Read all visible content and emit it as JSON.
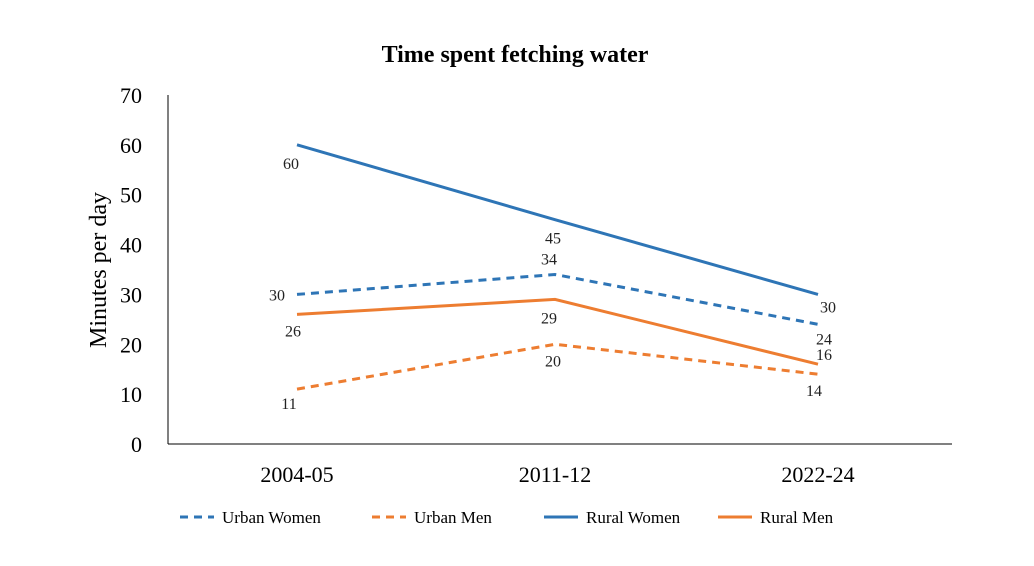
{
  "chart_data": {
    "type": "line",
    "title": "Time spent fetching water",
    "xlabel": "",
    "ylabel": "Minutes per day",
    "categories": [
      "2004-05",
      "2011-12",
      "2022-24"
    ],
    "ylim": [
      0,
      70
    ],
    "yticks": [
      0,
      10,
      20,
      30,
      40,
      50,
      60,
      70
    ],
    "grid": false,
    "legend_position": "bottom",
    "series": [
      {
        "name": "Urban Women",
        "values": [
          30,
          34,
          24
        ],
        "color": "#2E75B6",
        "dashed": true
      },
      {
        "name": "Urban Men",
        "values": [
          11,
          20,
          14
        ],
        "color": "#ED7D31",
        "dashed": true
      },
      {
        "name": "Rural Women",
        "values": [
          60,
          45,
          30
        ],
        "color": "#2E75B6",
        "dashed": false
      },
      {
        "name": "Rural Men",
        "values": [
          26,
          29,
          16
        ],
        "color": "#ED7D31",
        "dashed": false
      }
    ]
  }
}
